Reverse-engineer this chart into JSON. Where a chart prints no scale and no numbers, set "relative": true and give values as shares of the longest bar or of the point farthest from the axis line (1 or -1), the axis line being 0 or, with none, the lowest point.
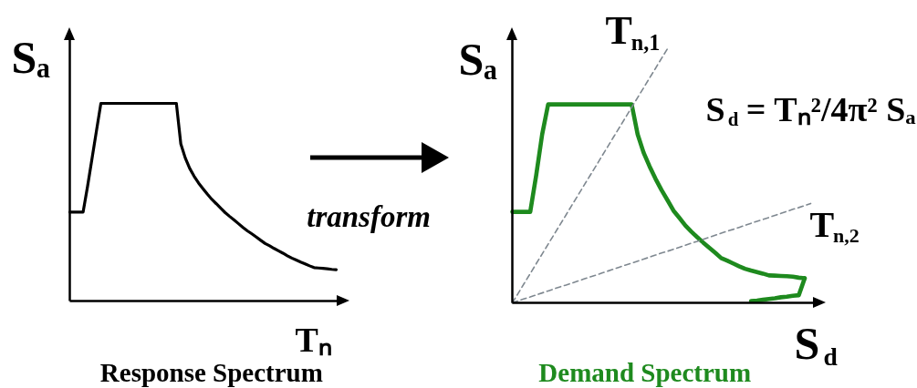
{
  "chart_data": [
    {
      "type": "line",
      "relative": true,
      "title": "Response Spectrum",
      "xlabel": "Tₙ",
      "ylabel": "Sₐ",
      "annotations": [
        "transform"
      ],
      "categories": [
        null,
        null,
        null,
        null,
        null,
        null,
        null,
        null,
        null,
        null,
        null,
        null,
        null,
        null,
        null,
        null,
        null,
        null,
        null,
        null,
        null,
        null,
        null,
        null,
        null,
        null,
        null,
        null,
        null,
        null,
        null,
        null,
        null,
        null,
        null,
        null,
        null,
        null,
        null,
        null,
        null,
        null,
        null,
        null,
        null,
        null,
        null,
        null,
        null,
        null,
        null,
        null,
        null,
        null,
        null,
        null,
        null,
        null,
        null,
        null,
        null
      ],
      "series": [
        {
          "color": "#000000",
          "values": [
            0.45,
            0.45,
            0.45,
            0.45,
            0.58,
            0.72,
            0.861,
            1,
            1,
            1,
            1,
            1,
            1,
            1,
            1,
            1,
            1,
            1,
            1,
            1,
            1,
            1,
            1,
            1,
            1,
            0.795,
            0.724,
            0.671,
            0.631,
            0.597,
            0.568,
            0.54,
            0.514,
            0.492,
            0.469,
            0.447,
            0.428,
            0.41,
            0.391,
            0.372,
            0.355,
            0.34,
            0.324,
            0.307,
            0.291,
            0.279,
            0.266,
            0.254,
            0.242,
            0.229,
            0.217,
            0.207,
            0.197,
            0.188,
            0.178,
            0.169,
            0.167,
            0.165,
            0.163,
            0.16,
            0.158
          ]
        }
      ]
    },
    {
      "type": "line",
      "relative": true,
      "title": "Demand Spectrum",
      "xlabel": "S$_{d}$",
      "ylabel": "Sₐ",
      "annotations": [
        "S$_{d}$ = Tₙ²/4π² Sₐ"
      ],
      "categories": [
        null,
        null,
        null,
        null,
        null,
        null,
        null,
        null,
        null,
        null,
        null,
        null,
        null,
        null,
        null,
        null,
        null,
        null,
        null,
        null,
        null,
        null,
        null,
        null,
        null,
        null,
        null,
        null,
        null,
        null,
        null,
        null,
        null,
        null,
        null,
        null,
        null,
        null,
        null,
        null,
        null,
        null,
        null,
        null,
        null,
        null,
        null,
        null,
        null,
        null,
        null
      ],
      "series": [
        {
          "color": "#1e8a1e",
          "values": [
            0.358,
            0.358,
            0.358,
            0.358,
            0.502,
            0.663,
            0.781,
            0.781,
            0.781,
            0.781,
            0.781,
            0.781,
            0.781,
            0.781,
            0.781,
            0.781,
            0.781,
            0.781,
            0.781,
            0.781,
            0.781,
            0.663,
            0.591,
            0.537,
            0.488,
            0.444,
            0.404,
            0.363,
            0.334,
            0.304,
            0.28,
            0.258,
            0.237,
            0.217,
            0.197,
            0.176,
            0.166,
            0.155,
            0.144,
            0.134,
            0.127,
            0.121,
            0.115,
            0.108,
            0.107,
            0.106,
            0.105,
            0.103,
            0.099,
            0.097,
            null
          ]
        },
        {
          "color": "#1e8a1e",
          "values": [
            null,
            null,
            null,
            null,
            null,
            null,
            null,
            null,
            null,
            null,
            null,
            null,
            null,
            null,
            null,
            null,
            null,
            null,
            null,
            null,
            null,
            null,
            null,
            null,
            null,
            null,
            null,
            null,
            null,
            null,
            null,
            null,
            null,
            null,
            null,
            null,
            null,
            null,
            null,
            null,
            0.007,
            0.009,
            0.012,
            0.015,
            0.018,
            0.022,
            0.024,
            0.028,
            0.03,
            0.097,
            null
          ]
        },
        {
          "name": "T$_{n,1}$",
          "color": "#7f8890",
          "line_style": "dashed",
          "values": [
            0,
            0.038,
            0.077,
            0.115,
            0.154,
            0.192,
            0.231,
            0.269,
            0.308,
            0.346,
            0.385,
            0.423,
            0.462,
            0.5,
            0.538,
            0.577,
            0.615,
            0.654,
            0.692,
            0.731,
            0.769,
            0.808,
            0.846,
            0.885,
            0.923,
            0.962,
            1,
            null,
            null,
            null,
            null,
            null,
            null,
            null,
            null,
            null,
            null,
            null,
            null,
            null,
            null,
            null,
            null,
            null,
            null,
            null,
            null,
            null,
            null,
            null,
            null
          ]
        },
        {
          "name": "T$_{n,2}$",
          "color": "#7f8890",
          "line_style": "dashed",
          "values": [
            0,
            0.008,
            0.016,
            0.023,
            0.031,
            0.039,
            0.047,
            0.055,
            0.063,
            0.07,
            0.078,
            0.086,
            0.094,
            0.102,
            0.109,
            0.117,
            0.125,
            0.133,
            0.141,
            0.149,
            0.156,
            0.164,
            0.172,
            0.18,
            0.188,
            0.196,
            0.203,
            0.211,
            0.219,
            0.227,
            0.235,
            0.242,
            0.25,
            0.258,
            0.266,
            0.274,
            0.282,
            0.289,
            0.297,
            0.305,
            0.313,
            0.321,
            0.328,
            0.336,
            0.344,
            0.352,
            0.36,
            0.368,
            0.375,
            0.383,
            0.391
          ]
        }
      ]
    }
  ]
}
